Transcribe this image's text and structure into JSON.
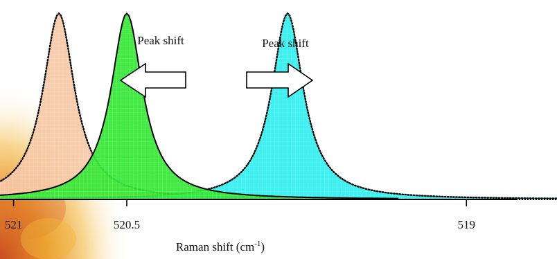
{
  "chart_data": {
    "type": "area",
    "title": "",
    "xlabel": "Raman shift (cm",
    "xlabel_sup": "-1",
    "xlabel_suffix": ")",
    "ylabel": "",
    "x_reversed": true,
    "xlim": [
      521.06,
      518.6
    ],
    "ylim": [
      0,
      1.02
    ],
    "grid": false,
    "tick_labels": [
      {
        "x": 521,
        "label": "521"
      },
      {
        "x": 520.5,
        "label": "520.5"
      },
      {
        "x": 519,
        "label": "519"
      }
    ],
    "series": [
      {
        "center": 520.8,
        "height": 1.0,
        "width": 0.085,
        "fill": "#f6c9a6",
        "line": "dotted"
      },
      {
        "center": 520.5,
        "height": 1.0,
        "width": 0.085,
        "fill": "#33e833",
        "line": "solid"
      },
      {
        "center": 519.79,
        "height": 1.0,
        "width": 0.085,
        "fill": "#30eeee",
        "line": "dotted"
      }
    ],
    "annotations": [
      {
        "text": "Peak shift",
        "direction": "left"
      },
      {
        "text": "Peak shift",
        "direction": "right"
      }
    ]
  },
  "colors": {
    "background_warm_1": "#f3b33a",
    "background_warm_2": "#c85a2c",
    "axis": "#000000"
  }
}
